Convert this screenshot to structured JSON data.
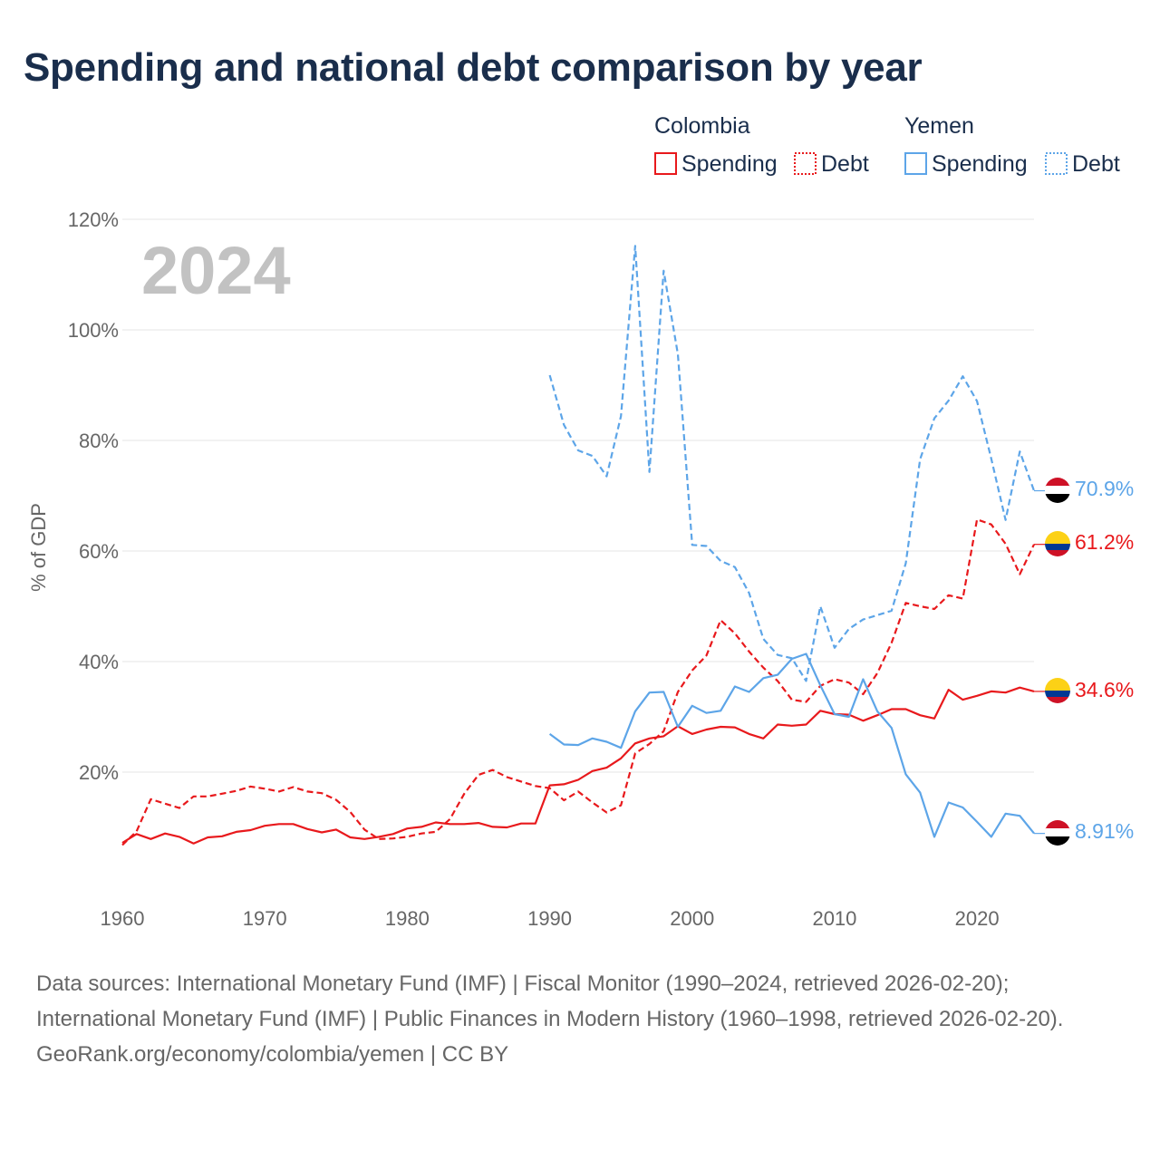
{
  "title": "Spending and national debt comparison by year",
  "colors": {
    "colombia": "#e8191c",
    "yemen": "#5da5e8",
    "title": "#1a2e4c",
    "grid": "#e6e6e6",
    "text": "#666666"
  },
  "legend": {
    "groups": [
      {
        "country": "Colombia",
        "items": [
          {
            "label": "Spending",
            "style": "solid"
          },
          {
            "label": "Debt",
            "style": "dotted"
          }
        ]
      },
      {
        "country": "Yemen",
        "items": [
          {
            "label": "Spending",
            "style": "solid"
          },
          {
            "label": "Debt",
            "style": "dotted"
          }
        ]
      }
    ]
  },
  "footer": {
    "sources": "Data sources: International Monetary Fund (IMF) | Fiscal Monitor (1990–2024, retrieved 2026-02-20); International Monetary Fund (IMF) | Public Finances in Modern History (1960–1998, retrieved 2026-02-20).",
    "credit": "GeoRank.org/economy/colombia/yemen | CC BY"
  },
  "chart_data": {
    "type": "line",
    "year_label": "2024",
    "ylabel": "% of GDP",
    "xlim": [
      1960,
      2024
    ],
    "ylim": [
      0,
      120
    ],
    "x_ticks": [
      1960,
      1970,
      1980,
      1990,
      2000,
      2010,
      2020
    ],
    "x_tick_labels": [
      "1960",
      "1970",
      "1980",
      "1990",
      "2000",
      "2010",
      "2020"
    ],
    "y_ticks": [
      20,
      40,
      60,
      80,
      100,
      120
    ],
    "y_tick_labels": [
      "20%",
      "40%",
      "60%",
      "80%",
      "100%",
      "120%"
    ],
    "grid": true,
    "series": [
      {
        "name": "Colombia Spending",
        "country": "colombia",
        "dash": "solid",
        "end_label": "34.6%",
        "flag": "colombia",
        "x": [
          1960,
          1961,
          1962,
          1963,
          1964,
          1965,
          1966,
          1967,
          1968,
          1969,
          1970,
          1971,
          1972,
          1973,
          1974,
          1975,
          1976,
          1977,
          1978,
          1979,
          1980,
          1981,
          1982,
          1983,
          1984,
          1985,
          1986,
          1987,
          1988,
          1989,
          1990,
          1991,
          1992,
          1993,
          1994,
          1995,
          1996,
          1997,
          1998,
          1999,
          2000,
          2001,
          2002,
          2003,
          2004,
          2005,
          2006,
          2007,
          2008,
          2009,
          2010,
          2011,
          2012,
          2013,
          2014,
          2015,
          2016,
          2017,
          2018,
          2019,
          2020,
          2021,
          2022,
          2023,
          2024
        ],
        "values": [
          7.2,
          8.8,
          7.9,
          8.9,
          8.3,
          7.1,
          8.2,
          8.4,
          9.2,
          9.5,
          10.3,
          10.6,
          10.6,
          9.7,
          9.1,
          9.6,
          8.2,
          7.9,
          8.3,
          8.8,
          9.8,
          10.1,
          10.9,
          10.6,
          10.6,
          10.8,
          10.1,
          10,
          10.7,
          10.7,
          17.6,
          17.8,
          18.6,
          20.2,
          20.8,
          22.5,
          25.2,
          26.1,
          26.5,
          28.3,
          26.9,
          27.7,
          28.2,
          28.1,
          26.9,
          26.1,
          28.6,
          28.4,
          28.6,
          31.1,
          30.5,
          30.4,
          29.3,
          30.3,
          31.4,
          31.4,
          30.3,
          29.7,
          34.9,
          33.1,
          33.8,
          34.6,
          34.4,
          35.3,
          34.6
        ]
      },
      {
        "name": "Colombia Debt",
        "country": "colombia",
        "dash": "dashed",
        "end_label": "61.2%",
        "flag": "colombia",
        "x": [
          1960,
          1961,
          1962,
          1963,
          1964,
          1965,
          1966,
          1967,
          1968,
          1969,
          1970,
          1971,
          1972,
          1973,
          1974,
          1975,
          1976,
          1977,
          1978,
          1979,
          1980,
          1981,
          1982,
          1983,
          1984,
          1985,
          1986,
          1987,
          1988,
          1989,
          1990,
          1991,
          1992,
          1993,
          1994,
          1995,
          1996,
          1997,
          1998,
          1999,
          2000,
          2001,
          2002,
          2003,
          2004,
          2005,
          2006,
          2007,
          2008,
          2009,
          2010,
          2011,
          2012,
          2013,
          2014,
          2015,
          2016,
          2017,
          2018,
          2019,
          2020,
          2021,
          2022,
          2023,
          2024
        ],
        "values": [
          6.8,
          9.3,
          15.1,
          14.3,
          13.5,
          15.6,
          15.6,
          16.1,
          16.6,
          17.4,
          17,
          16.5,
          17.3,
          16.5,
          16.2,
          15,
          12.8,
          9.6,
          7.9,
          8,
          8.3,
          8.9,
          9.2,
          11.5,
          16.1,
          19.5,
          20.4,
          19.1,
          18.3,
          17.5,
          17.1,
          14.9,
          16.5,
          14.5,
          12.7,
          14,
          23.4,
          25.1,
          27.4,
          34.5,
          38.4,
          41.1,
          47.5,
          45.1,
          41.8,
          38.9,
          36.5,
          33.1,
          32.7,
          35.6,
          36.8,
          36.2,
          34.1,
          37.9,
          43.4,
          50.6,
          50,
          49.5,
          52,
          51.4,
          65.7,
          64.8,
          61.3,
          55.8,
          61.2
        ]
      },
      {
        "name": "Yemen Spending",
        "country": "yemen",
        "dash": "solid",
        "end_label": "8.91%",
        "flag": "yemen",
        "x": [
          1990,
          1991,
          1992,
          1993,
          1994,
          1995,
          1996,
          1997,
          1998,
          1999,
          2000,
          2001,
          2002,
          2003,
          2004,
          2005,
          2006,
          2007,
          2008,
          2009,
          2010,
          2011,
          2012,
          2013,
          2014,
          2015,
          2016,
          2017,
          2018,
          2019,
          2020,
          2021,
          2022,
          2023,
          2024
        ],
        "values": [
          26.9,
          25,
          24.9,
          26.1,
          25.5,
          24.4,
          31,
          34.4,
          34.5,
          28.2,
          32,
          30.7,
          31.1,
          35.5,
          34.5,
          37,
          37.6,
          40.5,
          41.4,
          35.7,
          30.5,
          30,
          36.8,
          31,
          28,
          19.6,
          16.3,
          8.3,
          14.5,
          13.6,
          11,
          8.3,
          12.5,
          12.1,
          8.91
        ]
      },
      {
        "name": "Yemen Debt",
        "country": "yemen",
        "dash": "dashed",
        "end_label": "70.9%",
        "flag": "yemen",
        "x": [
          1990,
          1991,
          1992,
          1993,
          1994,
          1995,
          1996,
          1997,
          1998,
          1999,
          2000,
          2001,
          2002,
          2003,
          2004,
          2005,
          2006,
          2007,
          2008,
          2009,
          2010,
          2011,
          2012,
          2013,
          2014,
          2015,
          2016,
          2017,
          2018,
          2019,
          2020,
          2021,
          2022,
          2023,
          2024
        ],
        "values": [
          91.8,
          82.8,
          78.2,
          77.2,
          73.5,
          84.4,
          115.2,
          74.3,
          110.7,
          95.6,
          61.1,
          60.9,
          58.2,
          57.1,
          52.4,
          44.1,
          41.2,
          40.6,
          36.5,
          50,
          42.5,
          45.9,
          47.6,
          48.4,
          49.2,
          57.8,
          76.6,
          84,
          87.2,
          91.6,
          87.1,
          76.7,
          65.6,
          78,
          70.9
        ]
      }
    ]
  }
}
